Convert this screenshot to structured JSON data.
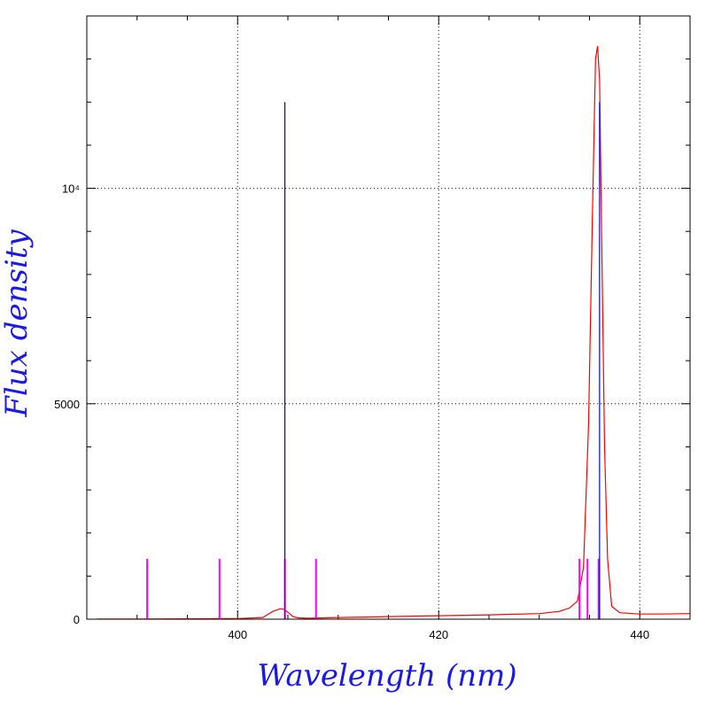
{
  "chart_data": {
    "type": "line",
    "xlabel": "Wavelength (nm)",
    "ylabel": "Flux density",
    "xlim": [
      385,
      445
    ],
    "ylim": [
      0,
      14000
    ],
    "grid": true,
    "x_ticks": [
      400,
      420,
      440
    ],
    "x_tick_labels": [
      "400",
      "420",
      "440"
    ],
    "y_ticks": [
      0,
      5000,
      10000
    ],
    "y_tick_labels": [
      "0",
      "5000",
      "10⁴"
    ],
    "colors": {
      "model": "#ff0000",
      "emission_line": "#0000ff",
      "marker": "#ff00ff"
    },
    "series": [
      {
        "x": [
          386,
          390,
          395,
          400,
          402.5,
          403.5,
          404.2,
          404.6,
          405.0,
          405.5,
          406,
          407,
          410,
          415,
          420,
          425,
          430,
          432,
          433,
          433.8,
          434.4,
          434.9,
          435.3,
          435.6,
          435.8,
          436.0,
          436.2,
          436.5,
          436.8,
          437.2,
          438,
          440,
          442,
          445
        ],
        "y": [
          5,
          5,
          8,
          15,
          40,
          180,
          240,
          230,
          160,
          60,
          30,
          20,
          40,
          60,
          80,
          100,
          130,
          180,
          260,
          420,
          1200,
          4500,
          9500,
          13000,
          13300,
          12500,
          9000,
          4000,
          1400,
          300,
          150,
          120,
          120,
          130
        ]
      },
      {
        "x": [
          404.7,
          436.0
        ],
        "y": [
          12000,
          12000
        ]
      },
      {
        "x": [
          391.0,
          398.2,
          404.7,
          407.8,
          434.0,
          434.8,
          435.9
        ],
        "y": [
          1400,
          1400,
          1400,
          1400,
          1400,
          1400,
          1400
        ]
      }
    ]
  }
}
